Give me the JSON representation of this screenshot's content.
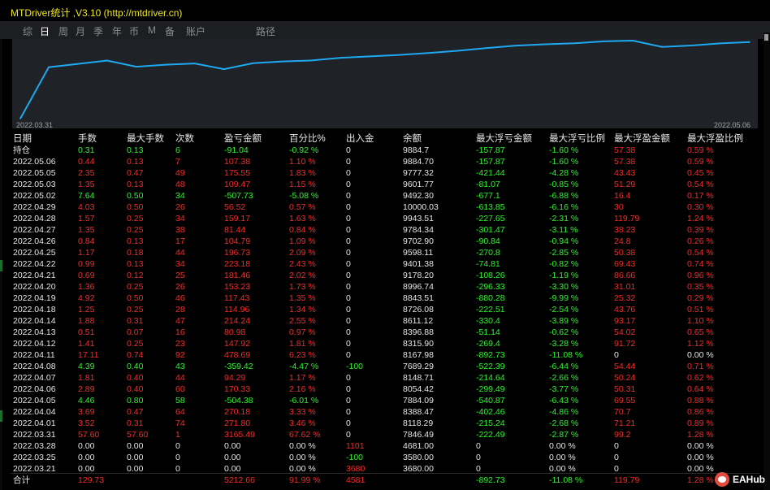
{
  "window": {
    "title": "MTDriver统计 ,V3.10 (http://mtdriver.cn)"
  },
  "tabs": [
    "综",
    "日",
    "周",
    "月",
    "季",
    "年",
    "币",
    "M",
    "备",
    "账户",
    "路径"
  ],
  "active_tab": "日",
  "chart": {
    "start_label": "2022.03.31",
    "end_label": "2022.05.06",
    "line_color": "#1fa9f0"
  },
  "chart_data": {
    "type": "line",
    "x": [
      "2022.03.31",
      "2022.04.01",
      "2022.04.04",
      "2022.04.05",
      "2022.04.06",
      "2022.04.07",
      "2022.04.08",
      "2022.04.11",
      "2022.04.12",
      "2022.04.13",
      "2022.04.14",
      "2022.04.18",
      "2022.04.19",
      "2022.04.20",
      "2022.04.21",
      "2022.04.22",
      "2022.04.25",
      "2022.04.26",
      "2022.04.27",
      "2022.04.28",
      "2022.04.29",
      "2022.05.02",
      "2022.05.03",
      "2022.05.05",
      "2022.05.06"
    ],
    "y": [
      7846.49,
      8118.29,
      8388.47,
      7884.09,
      8054.42,
      8148.71,
      7689.29,
      8167.98,
      8315.9,
      8396.88,
      8611.12,
      8726.08,
      8843.51,
      8996.74,
      9178.2,
      9401.38,
      9598.11,
      9702.9,
      9784.34,
      9943.51,
      10000.03,
      9492.3,
      9601.77,
      9777.32,
      9884.7
    ],
    "start_value": 3680.0
  },
  "colors": {
    "profit": "#2df22d",
    "loss": "#f22b2b",
    "neutral": "#e6e6e6",
    "title": "#f0e81e"
  },
  "table": {
    "headers": [
      "日期",
      "手数",
      "最大手数",
      "次数",
      "盈亏金额",
      "百分比%",
      "出入金",
      "余额",
      "最大浮亏金额",
      "最大浮亏比例",
      "最大浮盈金额",
      "最大浮盈比例"
    ],
    "rows": [
      {
        "date": "持仓",
        "lots": "0.31",
        "max_lots": "0.13",
        "count": "6",
        "pnl": "-91.04",
        "pct": "-0.92 %",
        "flow": "0",
        "balance": "9884.7",
        "max_dd": "-157.87",
        "max_dd_pct": "-1.60 %",
        "max_fp": "57.38",
        "max_fp_pct": "0.59 %",
        "c": "green"
      },
      {
        "date": "2022.05.06",
        "lots": "0.44",
        "max_lots": "0.13",
        "count": "7",
        "pnl": "107.38",
        "pct": "1.10 %",
        "flow": "0",
        "balance": "9884.70",
        "max_dd": "-157.87",
        "max_dd_pct": "-1.60 %",
        "max_fp": "57.38",
        "max_fp_pct": "0.59 %",
        "c": "red"
      },
      {
        "date": "2022.05.05",
        "lots": "2.35",
        "max_lots": "0.47",
        "count": "49",
        "pnl": "175.55",
        "pct": "1.83 %",
        "flow": "0",
        "balance": "9777.32",
        "max_dd": "-421.44",
        "max_dd_pct": "-4.28 %",
        "max_fp": "43.43",
        "max_fp_pct": "0.45 %",
        "c": "red"
      },
      {
        "date": "2022.05.03",
        "lots": "1.35",
        "max_lots": "0.13",
        "count": "48",
        "pnl": "109.47",
        "pct": "1.15 %",
        "flow": "0",
        "balance": "9601.77",
        "max_dd": "-81.07",
        "max_dd_pct": "-0.85 %",
        "max_fp": "51.29",
        "max_fp_pct": "0.54 %",
        "c": "red"
      },
      {
        "date": "2022.05.02",
        "lots": "7.64",
        "max_lots": "0.50",
        "count": "34",
        "pnl": "-507.73",
        "pct": "-5.08 %",
        "flow": "0",
        "balance": "9492.30",
        "max_dd": "-677.1",
        "max_dd_pct": "-6.88 %",
        "max_fp": "16.4",
        "max_fp_pct": "0.17 %",
        "c": "green"
      },
      {
        "date": "2022.04.29",
        "lots": "4.03",
        "max_lots": "0.50",
        "count": "26",
        "pnl": "56.52",
        "pct": "0.57 %",
        "flow": "0",
        "balance": "10000.03",
        "max_dd": "-613.85",
        "max_dd_pct": "-6.16 %",
        "max_fp": "30",
        "max_fp_pct": "0.30 %",
        "c": "red"
      },
      {
        "date": "2022.04.28",
        "lots": "1.57",
        "max_lots": "0.25",
        "count": "34",
        "pnl": "159.17",
        "pct": "1.63 %",
        "flow": "0",
        "balance": "9943.51",
        "max_dd": "-227.65",
        "max_dd_pct": "-2.31 %",
        "max_fp": "119.79",
        "max_fp_pct": "1.24 %",
        "c": "red"
      },
      {
        "date": "2022.04.27",
        "lots": "1.35",
        "max_lots": "0.25",
        "count": "38",
        "pnl": "81.44",
        "pct": "0.84 %",
        "flow": "0",
        "balance": "9784.34",
        "max_dd": "-301.47",
        "max_dd_pct": "-3.11 %",
        "max_fp": "38.23",
        "max_fp_pct": "0.39 %",
        "c": "red"
      },
      {
        "date": "2022.04.26",
        "lots": "0.84",
        "max_lots": "0.13",
        "count": "17",
        "pnl": "104.79",
        "pct": "1.09 %",
        "flow": "0",
        "balance": "9702.90",
        "max_dd": "-90.84",
        "max_dd_pct": "-0.94 %",
        "max_fp": "24.8",
        "max_fp_pct": "0.26 %",
        "c": "red"
      },
      {
        "date": "2022.04.25",
        "lots": "1.17",
        "max_lots": "0.18",
        "count": "44",
        "pnl": "196.73",
        "pct": "2.09 %",
        "flow": "0",
        "balance": "9598.11",
        "max_dd": "-270.8",
        "max_dd_pct": "-2.85 %",
        "max_fp": "50.38",
        "max_fp_pct": "0.54 %",
        "c": "red"
      },
      {
        "date": "2022.04.22",
        "lots": "0.99",
        "max_lots": "0.13",
        "count": "34",
        "pnl": "223.18",
        "pct": "2.43 %",
        "flow": "0",
        "balance": "9401.38",
        "max_dd": "-74.81",
        "max_dd_pct": "-0.82 %",
        "max_fp": "69.43",
        "max_fp_pct": "0.74 %",
        "c": "red"
      },
      {
        "date": "2022.04.21",
        "lots": "0.69",
        "max_lots": "0.12",
        "count": "25",
        "pnl": "181.46",
        "pct": "2.02 %",
        "flow": "0",
        "balance": "9178.20",
        "max_dd": "-108.26",
        "max_dd_pct": "-1.19 %",
        "max_fp": "86.66",
        "max_fp_pct": "0.96 %",
        "c": "red"
      },
      {
        "date": "2022.04.20",
        "lots": "1.36",
        "max_lots": "0.25",
        "count": "26",
        "pnl": "153.23",
        "pct": "1.73 %",
        "flow": "0",
        "balance": "8996.74",
        "max_dd": "-296.33",
        "max_dd_pct": "-3.30 %",
        "max_fp": "31.01",
        "max_fp_pct": "0.35 %",
        "c": "red"
      },
      {
        "date": "2022.04.19",
        "lots": "4.92",
        "max_lots": "0.50",
        "count": "46",
        "pnl": "117.43",
        "pct": "1.35 %",
        "flow": "0",
        "balance": "8843.51",
        "max_dd": "-880.28",
        "max_dd_pct": "-9.99 %",
        "max_fp": "25.32",
        "max_fp_pct": "0.29 %",
        "c": "red"
      },
      {
        "date": "2022.04.18",
        "lots": "1.25",
        "max_lots": "0.25",
        "count": "28",
        "pnl": "114.96",
        "pct": "1.34 %",
        "flow": "0",
        "balance": "8726.08",
        "max_dd": "-222.51",
        "max_dd_pct": "-2.54 %",
        "max_fp": "43.76",
        "max_fp_pct": "0.51 %",
        "c": "red"
      },
      {
        "date": "2022.04.14",
        "lots": "1.88",
        "max_lots": "0.31",
        "count": "47",
        "pnl": "214.24",
        "pct": "2.55 %",
        "flow": "0",
        "balance": "8611.12",
        "max_dd": "-330.4",
        "max_dd_pct": "-3.89 %",
        "max_fp": "93.17",
        "max_fp_pct": "1.10 %",
        "c": "red"
      },
      {
        "date": "2022.04.13",
        "lots": "0.51",
        "max_lots": "0.07",
        "count": "16",
        "pnl": "80.98",
        "pct": "0.97 %",
        "flow": "0",
        "balance": "8396.88",
        "max_dd": "-51.14",
        "max_dd_pct": "-0.62 %",
        "max_fp": "54.02",
        "max_fp_pct": "0.65 %",
        "c": "red"
      },
      {
        "date": "2022.04.12",
        "lots": "1.41",
        "max_lots": "0.25",
        "count": "23",
        "pnl": "147.92",
        "pct": "1.81 %",
        "flow": "0",
        "balance": "8315.90",
        "max_dd": "-269.4",
        "max_dd_pct": "-3.28 %",
        "max_fp": "91.72",
        "max_fp_pct": "1.12 %",
        "c": "red"
      },
      {
        "date": "2022.04.11",
        "lots": "17.11",
        "max_lots": "0.74",
        "count": "92",
        "pnl": "478.69",
        "pct": "6.23 %",
        "flow": "0",
        "balance": "8167.98",
        "max_dd": "-892.73",
        "max_dd_pct": "-11.08 %",
        "max_fp": "0",
        "max_fp_pct": "0.00 %",
        "c": "red",
        "fp_neutral": true
      },
      {
        "date": "2022.04.08",
        "lots": "4.39",
        "max_lots": "0.40",
        "count": "43",
        "pnl": "-359.42",
        "pct": "-4.47 %",
        "flow": "-100",
        "balance": "7689.29",
        "max_dd": "-522.39",
        "max_dd_pct": "-6.44 %",
        "max_fp": "54.44",
        "max_fp_pct": "0.71 %",
        "c": "green",
        "flow_green": true
      },
      {
        "date": "2022.04.07",
        "lots": "1.81",
        "max_lots": "0.40",
        "count": "44",
        "pnl": "94.29",
        "pct": "1.17 %",
        "flow": "0",
        "balance": "8148.71",
        "max_dd": "-214.64",
        "max_dd_pct": "-2.66 %",
        "max_fp": "50.24",
        "max_fp_pct": "0.62 %",
        "c": "red"
      },
      {
        "date": "2022.04.06",
        "lots": "2.89",
        "max_lots": "0.40",
        "count": "60",
        "pnl": "170.33",
        "pct": "2.16 %",
        "flow": "0",
        "balance": "8054.42",
        "max_dd": "-299.49",
        "max_dd_pct": "-3.77 %",
        "max_fp": "50.31",
        "max_fp_pct": "0.64 %",
        "c": "red"
      },
      {
        "date": "2022.04.05",
        "lots": "4.46",
        "max_lots": "0.80",
        "count": "58",
        "pnl": "-504.38",
        "pct": "-6.01 %",
        "flow": "0",
        "balance": "7884.09",
        "max_dd": "-540.87",
        "max_dd_pct": "-6.43 %",
        "max_fp": "69.55",
        "max_fp_pct": "0.88 %",
        "c": "green"
      },
      {
        "date": "2022.04.04",
        "lots": "3.69",
        "max_lots": "0.47",
        "count": "64",
        "pnl": "270.18",
        "pct": "3.33 %",
        "flow": "0",
        "balance": "8388.47",
        "max_dd": "-402.46",
        "max_dd_pct": "-4.86 %",
        "max_fp": "70.7",
        "max_fp_pct": "0.86 %",
        "c": "red"
      },
      {
        "date": "2022.04.01",
        "lots": "3.52",
        "max_lots": "0.31",
        "count": "74",
        "pnl": "271.80",
        "pct": "3.46 %",
        "flow": "0",
        "balance": "8118.29",
        "max_dd": "-215.24",
        "max_dd_pct": "-2.68 %",
        "max_fp": "71.21",
        "max_fp_pct": "0.89 %",
        "c": "red"
      },
      {
        "date": "2022.03.31",
        "lots": "57.60",
        "max_lots": "57.60",
        "count": "1",
        "pnl": "3165.49",
        "pct": "67.62 %",
        "flow": "0",
        "balance": "7846.49",
        "max_dd": "-222.49",
        "max_dd_pct": "-2.87 %",
        "max_fp": "99.2",
        "max_fp_pct": "1.28 %",
        "c": "red"
      },
      {
        "date": "2022.03.28",
        "lots": "0.00",
        "max_lots": "0.00",
        "count": "0",
        "pnl": "0.00",
        "pct": "0.00 %",
        "flow": "1101",
        "balance": "4681.00",
        "max_dd": "0",
        "max_dd_pct": "0.00 %",
        "max_fp": "0",
        "max_fp_pct": "0.00 %",
        "c": "white",
        "flow_red": true
      },
      {
        "date": "2022.03.25",
        "lots": "0.00",
        "max_lots": "0.00",
        "count": "0",
        "pnl": "0.00",
        "pct": "0.00 %",
        "flow": "-100",
        "balance": "3580.00",
        "max_dd": "0",
        "max_dd_pct": "0.00 %",
        "max_fp": "0",
        "max_fp_pct": "0.00 %",
        "c": "white",
        "flow_green": true
      },
      {
        "date": "2022.03.21",
        "lots": "0.00",
        "max_lots": "0.00",
        "count": "0",
        "pnl": "0.00",
        "pct": "0.00 %",
        "flow": "3680",
        "balance": "3680.00",
        "max_dd": "0",
        "max_dd_pct": "0.00 %",
        "max_fp": "0",
        "max_fp_pct": "0.00 %",
        "c": "white",
        "flow_red": true
      }
    ],
    "total": {
      "date": "合计",
      "lots": "129.73",
      "pnl": "5212.66",
      "pct": "91.99 %",
      "flow": "4581",
      "max_dd": "-892.73",
      "max_dd_pct": "-11.08 %",
      "max_fp": "119.79",
      "max_fp_pct": "1.28 %"
    }
  },
  "watermark": {
    "text": "EAHub"
  }
}
